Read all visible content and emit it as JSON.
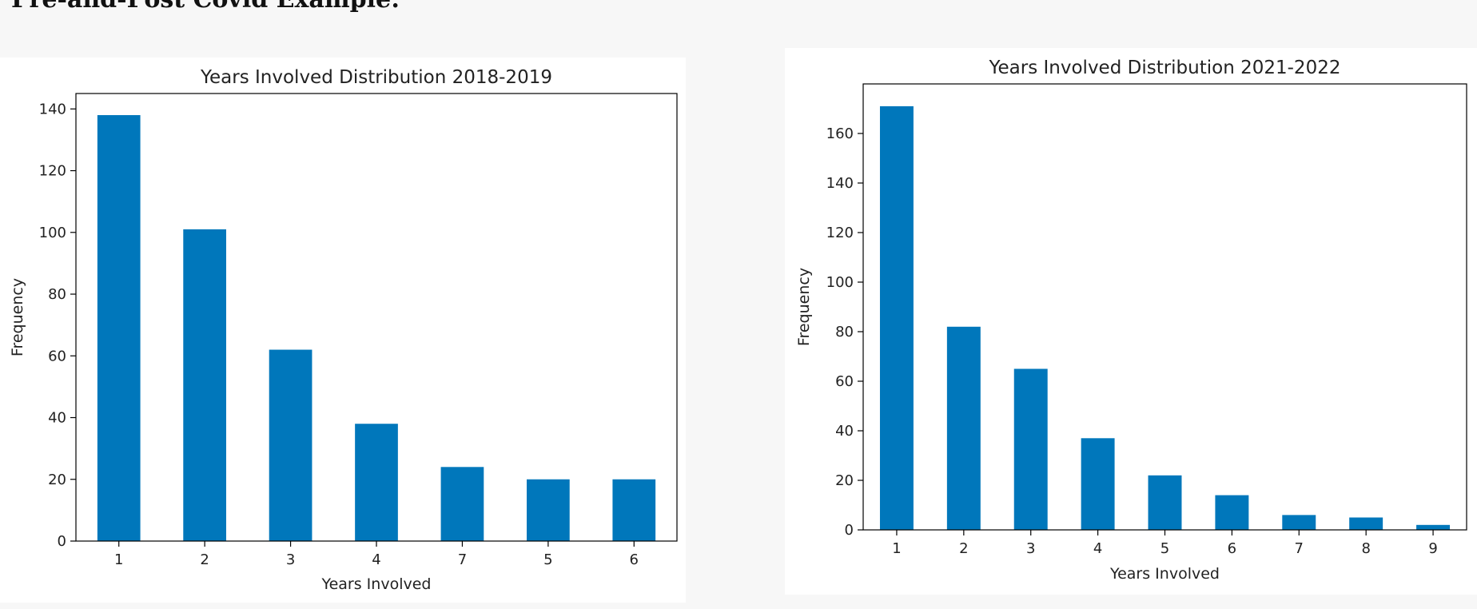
{
  "page": {
    "heading": "Pre-and-Post Covid Example:"
  },
  "chart_data": [
    {
      "type": "bar",
      "title": "Years Involved Distribution 2018-2019",
      "xlabel": "Years Involved",
      "ylabel": "Frequency",
      "categories": [
        "1",
        "2",
        "3",
        "4",
        "7",
        "5",
        "6"
      ],
      "values": [
        138,
        101,
        62,
        38,
        24,
        20,
        20
      ],
      "ylim": [
        0,
        145
      ],
      "yticks": [
        0,
        20,
        40,
        60,
        80,
        100,
        120,
        140
      ],
      "grid": false,
      "color": "#0077bb"
    },
    {
      "type": "bar",
      "title": "Years Involved Distribution 2021-2022",
      "xlabel": "Years Involved",
      "ylabel": "Frequency",
      "categories": [
        "1",
        "2",
        "3",
        "4",
        "5",
        "6",
        "7",
        "8",
        "9"
      ],
      "values": [
        171,
        82,
        65,
        37,
        22,
        14,
        6,
        5,
        2
      ],
      "ylim": [
        0,
        180
      ],
      "yticks": [
        0,
        20,
        40,
        60,
        80,
        100,
        120,
        140,
        160
      ],
      "grid": false,
      "color": "#0077bb"
    }
  ]
}
